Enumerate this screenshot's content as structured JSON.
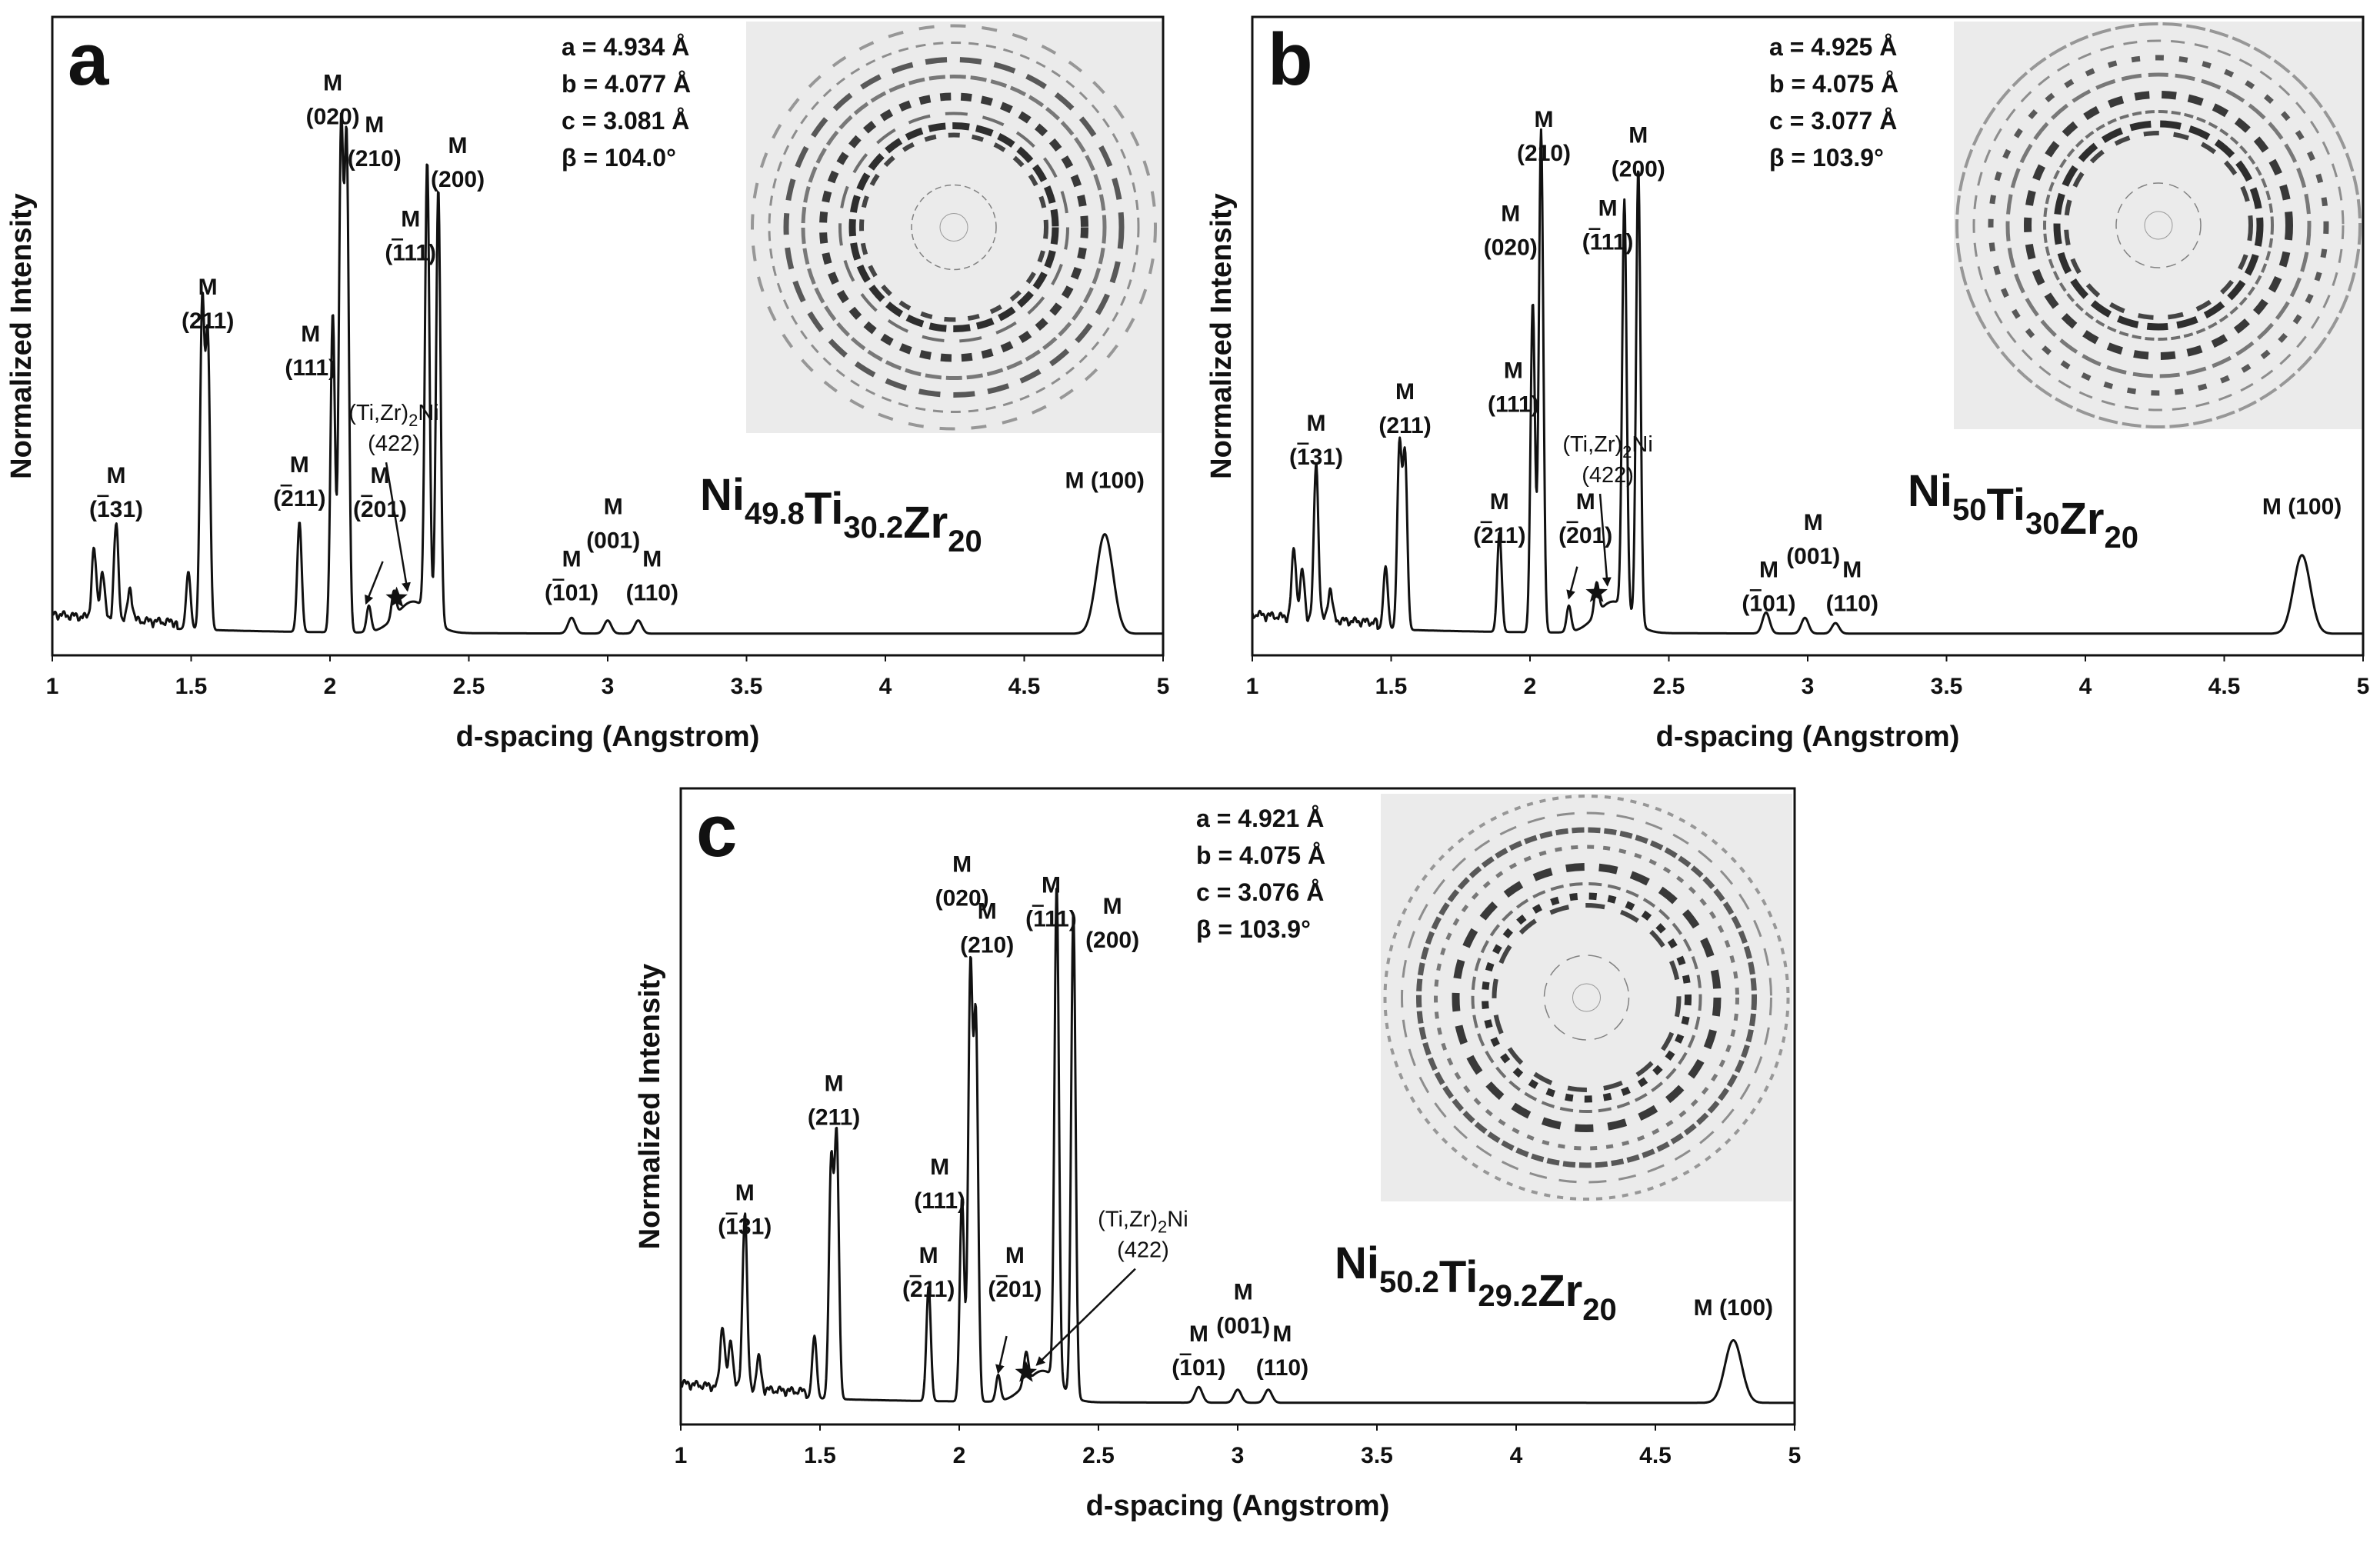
{
  "chart_data": [
    {
      "panel": "a",
      "type": "line",
      "xlabel": "d-spacing (Angstrom)",
      "ylabel": "Normalized Intensity",
      "xlim": [
        1,
        5
      ],
      "xticks": [
        "1",
        "1.5",
        "2",
        "2.5",
        "3",
        "3.5",
        "4",
        "4.5",
        "5"
      ],
      "composition": {
        "el1": "Ni",
        "sub1": "49.8",
        "el2": "Ti",
        "sub2": "30.2",
        "el3": "Zr",
        "sub3": "20"
      },
      "lattice": [
        "a = 4.934 Å",
        "b = 4.077 Å",
        "c = 3.081 Å",
        "β =  104.0°"
      ],
      "inset": "2D diffraction ring pattern",
      "peaks": [
        {
          "d": 1.15,
          "h": 0.13
        },
        {
          "d": 1.18,
          "h": 0.09
        },
        {
          "d": 1.23,
          "h": 0.18
        },
        {
          "d": 1.28,
          "h": 0.06
        },
        {
          "d": 1.49,
          "h": 0.11
        },
        {
          "d": 1.54,
          "h": 0.62
        },
        {
          "d": 1.56,
          "h": 0.55
        },
        {
          "d": 1.89,
          "h": 0.21
        },
        {
          "d": 2.01,
          "h": 0.61
        },
        {
          "d": 2.04,
          "h": 0.95
        },
        {
          "d": 2.06,
          "h": 0.92
        },
        {
          "d": 2.14,
          "h": 0.05
        },
        {
          "d": 2.23,
          "h": 0.05
        },
        {
          "d": 2.35,
          "h": 0.86
        },
        {
          "d": 2.39,
          "h": 0.83
        },
        {
          "d": 2.87,
          "h": 0.03
        },
        {
          "d": 3.0,
          "h": 0.025
        },
        {
          "d": 3.11,
          "h": 0.025
        },
        {
          "d": 4.79,
          "h": 0.19
        }
      ],
      "labels": [
        {
          "text": "M",
          "hkl": "(020)",
          "bar": "",
          "d": 2.01,
          "h": 1.05
        },
        {
          "text": "M",
          "hkl": "(210)",
          "bar": "",
          "d": 2.16,
          "h": 0.97
        },
        {
          "text": "M",
          "hkl": "(200)",
          "bar": "",
          "d": 2.46,
          "h": 0.93
        },
        {
          "text": "M",
          "hkl": "(111)",
          "bar": "1",
          "d": 2.29,
          "h": 0.79
        },
        {
          "text": "M",
          "hkl": "(211)",
          "bar": "",
          "d": 1.56,
          "h": 0.66
        },
        {
          "text": "M",
          "hkl": "(111)",
          "bar": "",
          "d": 1.93,
          "h": 0.57
        },
        {
          "text": "M",
          "hkl": "(211)",
          "bar": "2",
          "d": 1.89,
          "h": 0.32
        },
        {
          "text": "M",
          "hkl": "(201)",
          "bar": "2",
          "d": 2.18,
          "h": 0.3
        },
        {
          "text": "M",
          "hkl": "(131)",
          "bar": "1",
          "d": 1.23,
          "h": 0.3
        },
        {
          "text": "M",
          "hkl": "(001)",
          "bar": "",
          "d": 3.02,
          "h": 0.24
        },
        {
          "text": "M",
          "hkl": "(101)",
          "bar": "1",
          "d": 2.87,
          "h": 0.14
        },
        {
          "text": "M",
          "hkl": "(110)",
          "bar": "",
          "d": 3.16,
          "h": 0.14
        },
        {
          "text": "M (100)",
          "hkl": "",
          "bar": "",
          "d": 4.79,
          "h": 0.29
        }
      ],
      "impurity": {
        "text": "(Ti,Zr)",
        "sub": "2",
        "suffix": "Ni",
        "hkl": "(422)",
        "d": 2.23,
        "h": 0.42,
        "star_d": 2.24,
        "star_h": 0.08
      },
      "arrow": {
        "from_d": 2.19,
        "from_h": 0.15,
        "to_d": 2.13,
        "to_h": 0.07
      }
    },
    {
      "panel": "b",
      "type": "line",
      "xlabel": "d-spacing (Angstrom)",
      "ylabel": "Normalized Intensity",
      "xlim": [
        1,
        5
      ],
      "xticks": [
        "1",
        "1.5",
        "2",
        "2.5",
        "3",
        "3.5",
        "4",
        "4.5",
        "5"
      ],
      "composition": {
        "el1": "Ni",
        "sub1": "50",
        "el2": "Ti",
        "sub2": "30",
        "el3": "Zr",
        "sub3": "20"
      },
      "lattice": [
        "a = 4.925 Å",
        "b = 4.075 Å",
        "c = 3.077 Å",
        "β =  103.9°"
      ],
      "inset": "2D diffraction ring pattern",
      "peaks": [
        {
          "d": 1.15,
          "h": 0.13
        },
        {
          "d": 1.18,
          "h": 0.09
        },
        {
          "d": 1.23,
          "h": 0.3
        },
        {
          "d": 1.28,
          "h": 0.06
        },
        {
          "d": 1.48,
          "h": 0.12
        },
        {
          "d": 1.53,
          "h": 0.35
        },
        {
          "d": 1.55,
          "h": 0.33
        },
        {
          "d": 1.89,
          "h": 0.19
        },
        {
          "d": 2.01,
          "h": 0.63
        },
        {
          "d": 2.04,
          "h": 0.96
        },
        {
          "d": 2.14,
          "h": 0.05
        },
        {
          "d": 2.24,
          "h": 0.06
        },
        {
          "d": 2.34,
          "h": 0.78
        },
        {
          "d": 2.39,
          "h": 0.87
        },
        {
          "d": 2.85,
          "h": 0.04
        },
        {
          "d": 2.99,
          "h": 0.03
        },
        {
          "d": 3.1,
          "h": 0.02
        },
        {
          "d": 4.78,
          "h": 0.15
        }
      ],
      "labels": [
        {
          "text": "M",
          "hkl": "(210)",
          "bar": "",
          "d": 2.05,
          "h": 0.98
        },
        {
          "text": "M",
          "hkl": "(200)",
          "bar": "",
          "d": 2.39,
          "h": 0.95
        },
        {
          "text": "M",
          "hkl": "(020)",
          "bar": "",
          "d": 1.93,
          "h": 0.8
        },
        {
          "text": "M",
          "hkl": "(111)",
          "bar": "1",
          "d": 2.28,
          "h": 0.81
        },
        {
          "text": "M",
          "hkl": "(211)",
          "bar": "",
          "d": 1.55,
          "h": 0.46
        },
        {
          "text": "M",
          "hkl": "(131)",
          "bar": "1",
          "d": 1.23,
          "h": 0.4
        },
        {
          "text": "M",
          "hkl": "(111)",
          "bar": "",
          "d": 1.94,
          "h": 0.5
        },
        {
          "text": "M",
          "hkl": "(211)",
          "bar": "2",
          "d": 1.89,
          "h": 0.25
        },
        {
          "text": "M",
          "hkl": "(201)",
          "bar": "2",
          "d": 2.2,
          "h": 0.25
        },
        {
          "text": "M",
          "hkl": "(001)",
          "bar": "",
          "d": 3.02,
          "h": 0.21
        },
        {
          "text": "M",
          "hkl": "(101)",
          "bar": "1",
          "d": 2.86,
          "h": 0.12
        },
        {
          "text": "M",
          "hkl": "(110)",
          "bar": "",
          "d": 3.16,
          "h": 0.12
        },
        {
          "text": "M (100)",
          "hkl": "",
          "bar": "",
          "d": 4.78,
          "h": 0.24
        }
      ],
      "impurity": {
        "text": "(Ti,Zr)",
        "sub": "2",
        "suffix": "Ni",
        "hkl": "(422)",
        "d": 2.28,
        "h": 0.36,
        "star_d": 2.24,
        "star_h": 0.09
      },
      "arrow": {
        "from_d": 2.17,
        "from_h": 0.14,
        "to_d": 2.14,
        "to_h": 0.08
      }
    },
    {
      "panel": "c",
      "type": "line",
      "xlabel": "d-spacing (Angstrom)",
      "ylabel": "Normalized Intensity",
      "xlim": [
        1,
        5
      ],
      "xticks": [
        "1",
        "1.5",
        "2",
        "2.5",
        "3",
        "3.5",
        "4",
        "4.5",
        "5"
      ],
      "composition": {
        "el1": "Ni",
        "sub1": "50.2",
        "el2": "Ti",
        "sub2": "29.2",
        "el3": "Zr",
        "sub3": "20"
      },
      "lattice": [
        "a = 4.921 Å",
        "b = 4.075 Å",
        "c = 3.076 Å",
        "β =  103.9°"
      ],
      "inset": "2D diffraction ring pattern",
      "peaks": [
        {
          "d": 1.15,
          "h": 0.12
        },
        {
          "d": 1.18,
          "h": 0.09
        },
        {
          "d": 1.23,
          "h": 0.34
        },
        {
          "d": 1.28,
          "h": 0.06
        },
        {
          "d": 1.48,
          "h": 0.12
        },
        {
          "d": 1.54,
          "h": 0.45
        },
        {
          "d": 1.56,
          "h": 0.5
        },
        {
          "d": 1.89,
          "h": 0.22
        },
        {
          "d": 2.01,
          "h": 0.39
        },
        {
          "d": 2.04,
          "h": 0.82
        },
        {
          "d": 2.06,
          "h": 0.72
        },
        {
          "d": 2.14,
          "h": 0.05
        },
        {
          "d": 2.24,
          "h": 0.06
        },
        {
          "d": 2.35,
          "h": 0.95
        },
        {
          "d": 2.41,
          "h": 0.93
        },
        {
          "d": 2.86,
          "h": 0.03
        },
        {
          "d": 3.0,
          "h": 0.025
        },
        {
          "d": 3.11,
          "h": 0.025
        },
        {
          "d": 4.78,
          "h": 0.12
        }
      ],
      "labels": [
        {
          "text": "M",
          "hkl": "(020)",
          "bar": "",
          "d": 2.01,
          "h": 1.03
        },
        {
          "text": "M",
          "hkl": "(210)",
          "bar": "",
          "d": 2.1,
          "h": 0.94
        },
        {
          "text": "M",
          "hkl": "(111)",
          "bar": "1",
          "d": 2.33,
          "h": 0.99
        },
        {
          "text": "M",
          "hkl": "(200)",
          "bar": "",
          "d": 2.55,
          "h": 0.95
        },
        {
          "text": "M",
          "hkl": "(211)",
          "bar": "",
          "d": 1.55,
          "h": 0.61
        },
        {
          "text": "M",
          "hkl": "(111)",
          "bar": "",
          "d": 1.93,
          "h": 0.45
        },
        {
          "text": "M",
          "hkl": "(131)",
          "bar": "1",
          "d": 1.23,
          "h": 0.4
        },
        {
          "text": "M",
          "hkl": "(211)",
          "bar": "2",
          "d": 1.89,
          "h": 0.28
        },
        {
          "text": "M",
          "hkl": "(201)",
          "bar": "2",
          "d": 2.2,
          "h": 0.28
        },
        {
          "text": "M",
          "hkl": "(001)",
          "bar": "",
          "d": 3.02,
          "h": 0.21
        },
        {
          "text": "M",
          "hkl": "(101)",
          "bar": "1",
          "d": 2.86,
          "h": 0.13
        },
        {
          "text": "M",
          "hkl": "(110)",
          "bar": "",
          "d": 3.16,
          "h": 0.13
        },
        {
          "text": "M (100)",
          "hkl": "",
          "bar": "",
          "d": 4.78,
          "h": 0.18
        }
      ],
      "impurity": {
        "text": "(Ti,Zr)",
        "sub": "2",
        "suffix": "Ni",
        "hkl": "(422)",
        "d": 2.66,
        "h": 0.35,
        "star_d": 2.24,
        "star_h": 0.07
      },
      "arrow": {
        "from_d": 2.17,
        "from_h": 0.14,
        "to_d": 2.14,
        "to_h": 0.07
      }
    }
  ],
  "colors": {
    "line": "#111111",
    "inset_bg": "#ebebeb",
    "ring": "#1a1a1a"
  }
}
